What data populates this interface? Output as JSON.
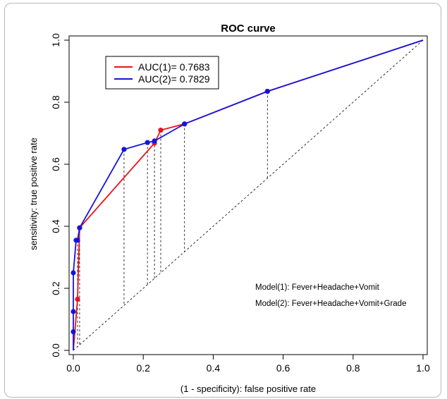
{
  "chart_data": {
    "type": "line",
    "title": "ROC curve",
    "xlabel": "(1 - specificity): false positive rate",
    "ylabel": "sensitivity: true positive rate",
    "xlim": [
      0,
      1
    ],
    "ylim": [
      0,
      1
    ],
    "x_ticks": [
      "0.0",
      "0.2",
      "0.4",
      "0.6",
      "0.8",
      "1.0"
    ],
    "y_ticks": [
      "0.0",
      "0.2",
      "0.4",
      "0.6",
      "0.8",
      "1.0"
    ],
    "grid": false,
    "legend_position": "top-left",
    "diagonal": {
      "from": [
        0,
        0
      ],
      "to": [
        1,
        1
      ],
      "style": "dashed"
    },
    "series": [
      {
        "name": "AUC(1)= 0.7683",
        "color": "#e8141c",
        "x": [
          0,
          0.012,
          0.018,
          0.232,
          0.25,
          0.318,
          0.555,
          1
        ],
        "y": [
          0,
          0.165,
          0.395,
          0.668,
          0.71,
          0.73,
          0.835,
          1
        ]
      },
      {
        "name": "AUC(2)= 0.7829",
        "color": "#1414e0",
        "x": [
          0,
          0,
          0,
          0,
          0.008,
          0.012,
          0.018,
          0.145,
          0.212,
          0.232,
          0.318,
          0.555,
          1
        ],
        "y": [
          0,
          0.06,
          0.125,
          0.25,
          0.355,
          0.355,
          0.395,
          0.648,
          0.67,
          0.675,
          0.73,
          0.835,
          1
        ]
      }
    ],
    "vertical_drop_lines_x": [
      0.012,
      0.018,
      0.145,
      0.212,
      0.232,
      0.25,
      0.318,
      0.555
    ],
    "annotations": [
      "Model(1): Fever+Headache+Vomit",
      "Model(2): Fever+Headache+Vomit+Grade"
    ]
  }
}
